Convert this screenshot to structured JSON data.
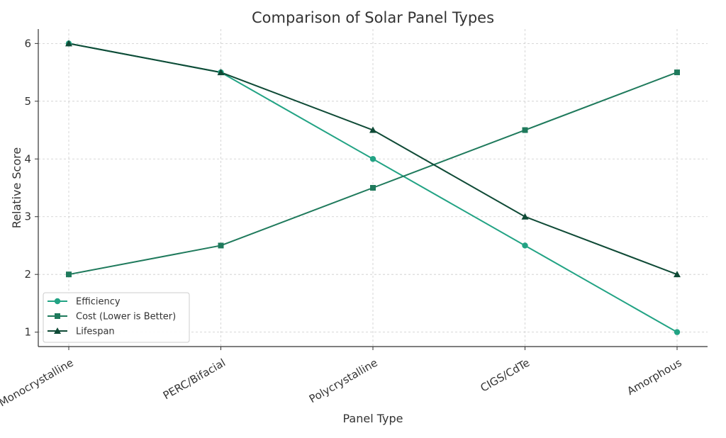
{
  "chart_data": {
    "type": "line",
    "title": "Comparison of Solar Panel Types",
    "xlabel": "Panel Type",
    "ylabel": "Relative Score",
    "categories": [
      "Monocrystalline",
      "PERC/Bifacial",
      "Polycrystalline",
      "CIGS/CdTe",
      "Amorphous"
    ],
    "ylim": [
      0.75,
      6.25
    ],
    "yticks": [
      1,
      2,
      3,
      4,
      5,
      6
    ],
    "grid": true,
    "legend_position": "lower-left",
    "series": [
      {
        "name": "Efficiency",
        "values": [
          6,
          5.5,
          4,
          2.5,
          1
        ],
        "color": "#22a384",
        "marker": "circle"
      },
      {
        "name": "Cost (Lower is Better)",
        "values": [
          2,
          2.5,
          3.5,
          4.5,
          5.5
        ],
        "color": "#1f7a5c",
        "marker": "square"
      },
      {
        "name": "Lifespan",
        "values": [
          6,
          5.5,
          4.5,
          3,
          2
        ],
        "color": "#0f4a36",
        "marker": "triangle"
      }
    ]
  }
}
